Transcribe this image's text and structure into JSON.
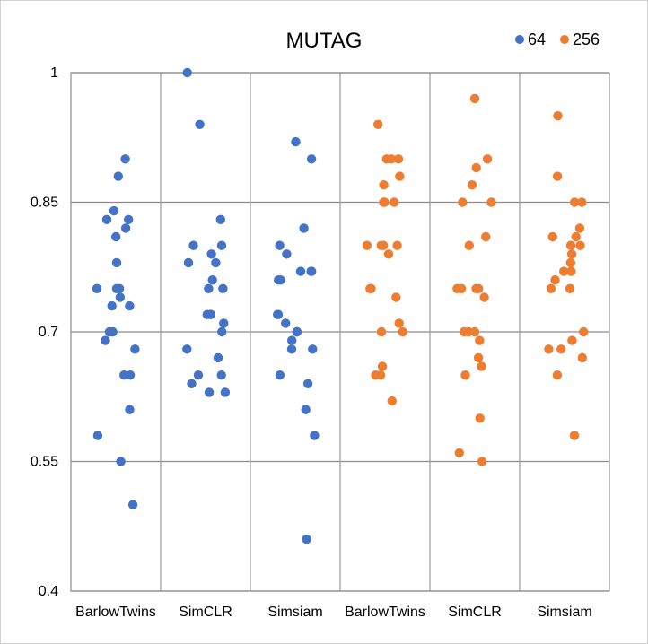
{
  "chart_data": {
    "type": "scatter",
    "title": "MUTAG",
    "xlabel": "",
    "ylabel": "",
    "ylim": [
      0.4,
      1.0
    ],
    "yticks": [
      "0.4",
      "0.55",
      "0.7",
      "0.85",
      "1"
    ],
    "grid": true,
    "legend_position": "top-right",
    "categories": [
      "BarlowTwins",
      "SimCLR",
      "Simsiam",
      "BarlowTwins",
      "SimCLR",
      "Simsiam"
    ],
    "series": [
      {
        "name": "64",
        "color": "#4472c4",
        "groups": [
          {
            "category_index": 0,
            "values": [
              0.9,
              0.88,
              0.84,
              0.83,
              0.83,
              0.82,
              0.81,
              0.78,
              0.75,
              0.75,
              0.75,
              0.74,
              0.73,
              0.73,
              0.7,
              0.7,
              0.69,
              0.68,
              0.65,
              0.65,
              0.61,
              0.58,
              0.55,
              0.5
            ]
          },
          {
            "category_index": 1,
            "values": [
              1.0,
              0.94,
              0.83,
              0.8,
              0.8,
              0.79,
              0.78,
              0.78,
              0.76,
              0.75,
              0.75,
              0.72,
              0.72,
              0.72,
              0.71,
              0.7,
              0.68,
              0.67,
              0.65,
              0.65,
              0.64,
              0.63,
              0.63
            ]
          },
          {
            "category_index": 2,
            "values": [
              0.92,
              0.9,
              0.82,
              0.8,
              0.79,
              0.77,
              0.77,
              0.77,
              0.76,
              0.76,
              0.72,
              0.72,
              0.71,
              0.7,
              0.7,
              0.69,
              0.68,
              0.68,
              0.65,
              0.64,
              0.61,
              0.58,
              0.46
            ]
          }
        ]
      },
      {
        "name": "256",
        "color": "#ed7d31",
        "groups": [
          {
            "category_index": 3,
            "values": [
              0.94,
              0.9,
              0.9,
              0.9,
              0.88,
              0.87,
              0.85,
              0.85,
              0.85,
              0.8,
              0.8,
              0.8,
              0.8,
              0.79,
              0.75,
              0.75,
              0.74,
              0.71,
              0.7,
              0.7,
              0.66,
              0.65,
              0.65,
              0.62
            ]
          },
          {
            "category_index": 4,
            "values": [
              0.97,
              0.9,
              0.89,
              0.87,
              0.85,
              0.85,
              0.81,
              0.8,
              0.75,
              0.75,
              0.75,
              0.75,
              0.74,
              0.7,
              0.7,
              0.7,
              0.69,
              0.67,
              0.66,
              0.65,
              0.6,
              0.56,
              0.55
            ]
          },
          {
            "category_index": 5,
            "values": [
              0.95,
              0.88,
              0.85,
              0.85,
              0.82,
              0.81,
              0.81,
              0.8,
              0.8,
              0.79,
              0.78,
              0.77,
              0.77,
              0.76,
              0.75,
              0.75,
              0.7,
              0.69,
              0.68,
              0.68,
              0.67,
              0.65,
              0.58
            ]
          }
        ]
      }
    ]
  }
}
